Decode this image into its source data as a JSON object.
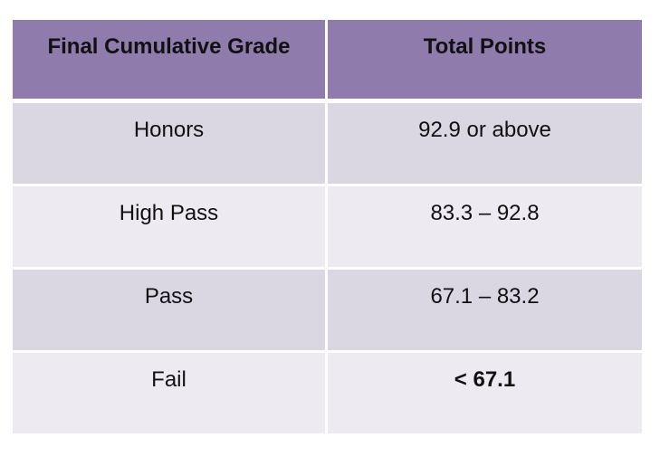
{
  "table": {
    "headers": [
      "Final Cumulative Grade",
      "Total Points"
    ],
    "rows": [
      {
        "grade": "Honors",
        "points": "92.9 or above"
      },
      {
        "grade": "High Pass",
        "points": "83.3 – 92.8"
      },
      {
        "grade": "Pass",
        "points": "67.1 – 83.2"
      },
      {
        "grade": "Fail",
        "points": "< 67.1"
      }
    ],
    "colors": {
      "header_bg": "#8f7bac",
      "row_odd_bg": "#dad7e2",
      "row_even_bg": "#edebf1"
    }
  }
}
